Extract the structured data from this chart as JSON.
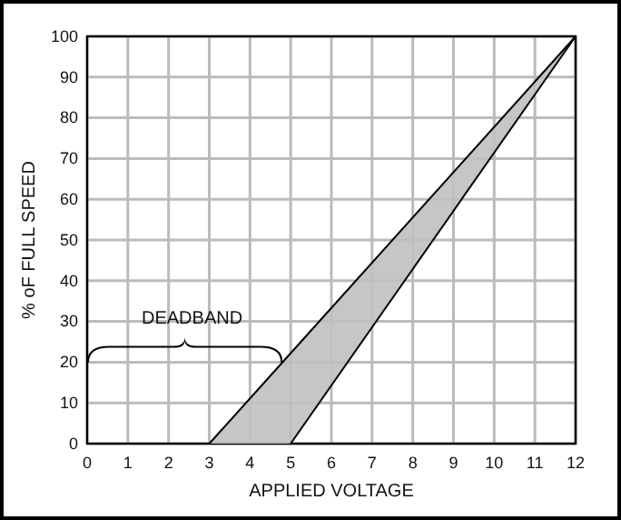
{
  "chart_data": {
    "type": "line",
    "xlabel": "APPLIED VOLTAGE",
    "ylabel": "% oF FULL SPEED",
    "series": [
      {
        "color": "#000000",
        "x": [
          3,
          5,
          12
        ],
        "values": [
          0,
          22.2,
          100
        ],
        "lower": [
          0,
          0,
          100
        ],
        "upper": [
          0,
          22.2,
          100
        ]
      },
      {
        "color": "#000000",
        "x": [
          5,
          12
        ],
        "values": [
          0,
          100
        ]
      }
    ],
    "xlim": [
      0,
      12
    ],
    "xticks": [
      0,
      1,
      2,
      3,
      4,
      5,
      6,
      7,
      8,
      9,
      10,
      11,
      12
    ],
    "ylim": [
      0,
      100
    ],
    "yticks": [
      0,
      10,
      20,
      30,
      40,
      50,
      60,
      70,
      80,
      90,
      100
    ],
    "grid": true,
    "marker": "none",
    "line_style": "solid",
    "annotations": [
      "DEADBAND"
    ]
  }
}
